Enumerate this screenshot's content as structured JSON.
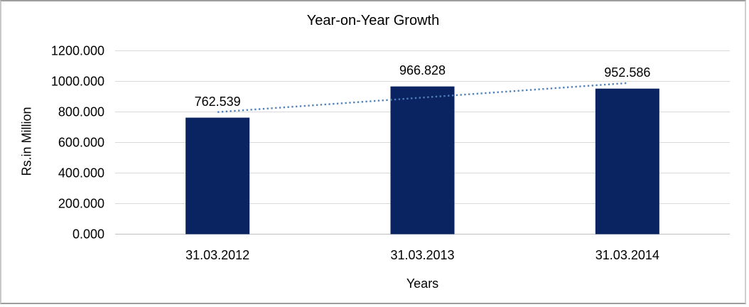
{
  "chart_data": {
    "type": "bar",
    "title": "Year-on-Year Growth",
    "xlabel": "Years",
    "ylabel": "Rs.in Million",
    "categories": [
      "31.03.2012",
      "31.03.2013",
      "31.03.2014"
    ],
    "values": [
      762.539,
      966.828,
      952.586
    ],
    "value_labels": [
      "762.539",
      "966.828",
      "952.586"
    ],
    "y_ticks": [
      0,
      200,
      400,
      600,
      800,
      1000,
      1200
    ],
    "y_tick_labels": [
      "0.000",
      "200.000",
      "400.000",
      "600.000",
      "800.000",
      "1000.000",
      "1200.000"
    ],
    "ylim": [
      0,
      1200
    ],
    "grid": true,
    "legend": "none",
    "trendline": {
      "type": "linear",
      "style": "dotted",
      "color": "#4f81bd"
    },
    "colors": {
      "bar": "#0a2361",
      "gridline": "#d9d9d9",
      "baseline": "#c0c0c0",
      "text": "#000000",
      "frame_border": "#9e9e9e"
    }
  }
}
